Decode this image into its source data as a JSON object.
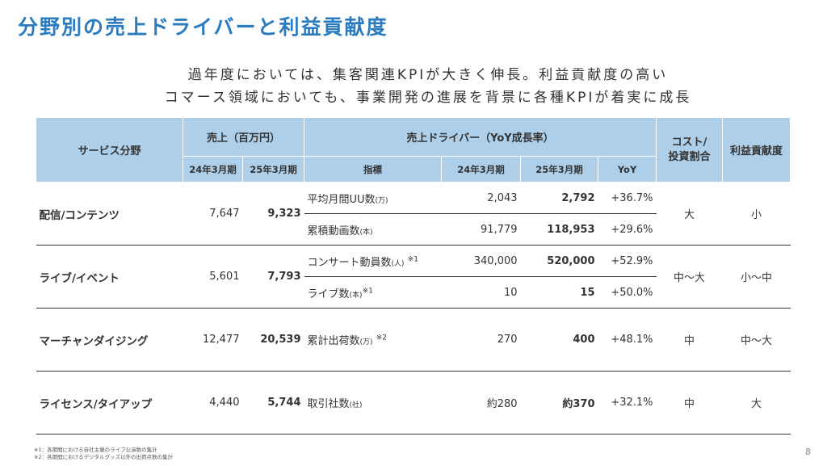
{
  "title": "分野別の売上ドライバーと利益貢献度",
  "lead": [
    "過年度においては、集客関連KPIが大きく伸長。利益貢献度の高い",
    "コマース領域においても、事業開発の進展を背景に各種KPIが着実に成長"
  ],
  "headers": {
    "service": "サービス分野",
    "sales": "売上（百万円）",
    "drivers": "売上ドライバー（YoY成長率）",
    "cost": "コスト/\n投資割合",
    "profit": "利益貢献度",
    "fy24": "24年3月期",
    "fy25": "25年3月期",
    "indicator": "指標",
    "yoy": "YoY"
  },
  "rows": [
    {
      "category": "配信/コンテンツ",
      "sales24": "7,647",
      "sales25": "9,323",
      "cost": "大",
      "profit": "小",
      "drivers": [
        {
          "name": "平均月間UU数",
          "unit": "(万)",
          "note": "",
          "v24": "2,043",
          "v25": "2,792",
          "yoy": "+36.7%"
        },
        {
          "name": "累積動画数",
          "unit": "(本)",
          "note": "",
          "v24": "91,779",
          "v25": "118,953",
          "yoy": "+29.6%"
        }
      ]
    },
    {
      "category": "ライブ/イベント",
      "sales24": "5,601",
      "sales25": "7,793",
      "cost": "中〜大",
      "profit": "小〜中",
      "drivers": [
        {
          "name": "コンサート動員数",
          "unit": "(人)",
          "note": "※1",
          "v24": "340,000",
          "v25": "520,000",
          "yoy": "+52.9%"
        },
        {
          "name": "ライブ数",
          "unit": "(本)",
          "note": "※1",
          "v24": "10",
          "v25": "15",
          "yoy": "+50.0%"
        }
      ]
    },
    {
      "category": "マーチャンダイジング",
      "sales24": "12,477",
      "sales25": "20,539",
      "cost": "中",
      "profit": "中〜大",
      "drivers": [
        {
          "name": "累計出荷数",
          "unit": "(万)",
          "note": "※2",
          "v24": "270",
          "v25": "400",
          "yoy": "+48.1%"
        }
      ]
    },
    {
      "category": "ライセンス/タイアップ",
      "sales24": "4,440",
      "sales25": "5,744",
      "cost": "中",
      "profit": "大",
      "drivers": [
        {
          "name": "取引社数",
          "unit": "(社)",
          "note": "",
          "v24": "約280",
          "v25": "約370",
          "yoy": "+32.1%"
        }
      ]
    }
  ],
  "footnotes": [
    "※1：各期間における自社主催のライブ公演数の集計",
    "※2：各期間におけるデジタルグッズ以外の出荷点数の集計"
  ],
  "page_number": "8",
  "colors": {
    "title": "#2a7bbf",
    "header_bg": "#aecfe9"
  }
}
